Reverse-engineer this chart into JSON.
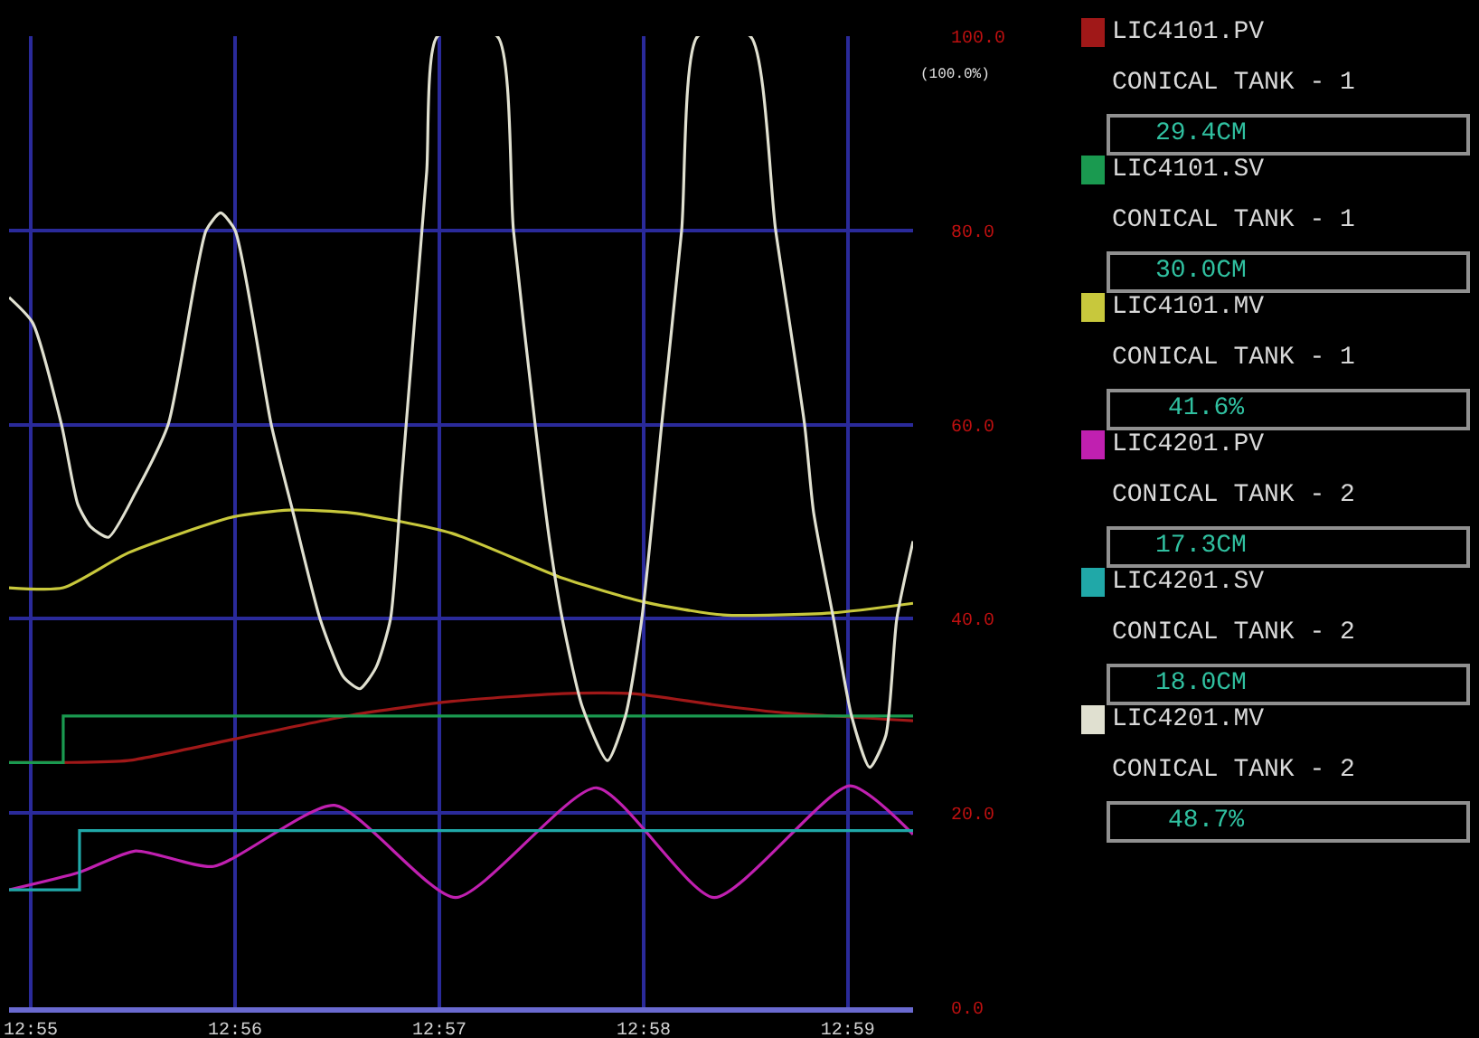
{
  "chart_data": {
    "type": "line",
    "legend": "right",
    "grid": true,
    "xlim": [
      12.9149,
      12.98865
    ],
    "xticks": [
      {
        "value": 12.91667,
        "label": "12:55"
      },
      {
        "value": 12.93333,
        "label": "12:56"
      },
      {
        "value": 12.95,
        "label": "12:57"
      },
      {
        "value": 12.96667,
        "label": "12:58"
      },
      {
        "value": 12.98333,
        "label": "12:59"
      }
    ],
    "ylim": [
      0,
      100
    ],
    "yticks": [
      {
        "value": 0,
        "label": "0.0"
      },
      {
        "value": 20,
        "label": "20.0"
      },
      {
        "value": 40,
        "label": "40.0"
      },
      {
        "value": 60,
        "label": "60.0"
      },
      {
        "value": 80,
        "label": "80.0"
      },
      {
        "value": 100,
        "label": "100.0"
      }
    ],
    "annotations": [
      "(100.0%)",
      "CONICAL TANK - 1",
      "29.4CM",
      "CONICAL TANK - 1",
      "30.0CM",
      "CONICAL TANK - 1",
      "41.6%",
      "CONICAL TANK - 2",
      "17.3CM",
      "CONICAL TANK - 2",
      "18.0CM",
      "CONICAL TANK - 2",
      "48.7%"
    ],
    "series": [
      {
        "name": "LIC4101.PV",
        "color": "#a01818",
        "x": [
          12.9149,
          12.91932,
          12.92463,
          12.93319,
          12.94292,
          12.95104,
          12.96003,
          12.96578,
          12.97213,
          12.97744,
          12.98865
        ],
        "values": [
          25.2,
          25.2,
          25.4,
          27.6,
          30.1,
          31.5,
          32.3,
          32.3,
          31.2,
          30.4,
          29.5
        ]
      },
      {
        "name": "LIC4101.SV",
        "color": "#1a9a50",
        "type": "step",
        "x": [
          12.9149,
          12.91932,
          12.98865
        ],
        "values": [
          25.2,
          30,
          30
        ]
      },
      {
        "name": "LIC4101.MV",
        "color": "#c8c83c",
        "x": [
          12.9149,
          12.91932,
          12.92463,
          12.93319,
          12.93776,
          12.94292,
          12.95104,
          12.96003,
          12.96682,
          12.97316,
          12.98201,
          12.98865
        ],
        "values": [
          43.2,
          43.2,
          46.8,
          50.5,
          51.2,
          50.9,
          48.8,
          44.2,
          41.7,
          40.4,
          40.6,
          41.6
        ]
      },
      {
        "name": "LIC4201.PV",
        "color": "#c020b0",
        "x": [
          12.9149,
          12.92065,
          12.92522,
          12.93157,
          12.94145,
          12.95133,
          12.96283,
          12.97242,
          12.98348,
          12.98865
        ],
        "values": [
          12.1,
          13.9,
          16.1,
          14.5,
          20.8,
          11.3,
          22.6,
          11.3,
          22.8,
          17.8
        ]
      },
      {
        "name": "LIC4201.SV",
        "color": "#20a8a8",
        "type": "step",
        "x": [
          12.9149,
          12.92065,
          12.98865
        ],
        "values": [
          12.1,
          18.2,
          18.2
        ]
      },
      {
        "name": "LIC4201.MV",
        "color": "#e0e0d0",
        "x": [
          12.9149,
          12.91682,
          12.91918,
          12.92051,
          12.92154,
          12.92301,
          12.92522,
          12.92788,
          12.93098,
          12.93216,
          12.93334,
          12.93629,
          12.93806,
          12.94027,
          12.94219,
          12.94351,
          12.94484,
          12.94602,
          12.94691,
          12.94794,
          12.94897,
          12.94986,
          12.95472,
          12.95605,
          12.95782,
          12.959,
          12.96003,
          12.96165,
          12.96372,
          12.96519,
          12.96652,
          12.96814,
          12.96977,
          12.97109,
          12.97537,
          12.97744,
          12.9798,
          12.98053,
          12.98216,
          12.98363,
          12.98511,
          12.98643,
          12.98732,
          12.98865
        ],
        "values": [
          73.1,
          70.5,
          60,
          51.8,
          49.5,
          48.4,
          53,
          60,
          80,
          81.8,
          80,
          60,
          51,
          40,
          34,
          32.8,
          35,
          40,
          54,
          70,
          86,
          100,
          100,
          80,
          60,
          48,
          40,
          31,
          25.4,
          30,
          40,
          60,
          80,
          100,
          100,
          80,
          60,
          51,
          40,
          30,
          24.7,
          28,
          40,
          48
        ]
      }
    ]
  }
}
